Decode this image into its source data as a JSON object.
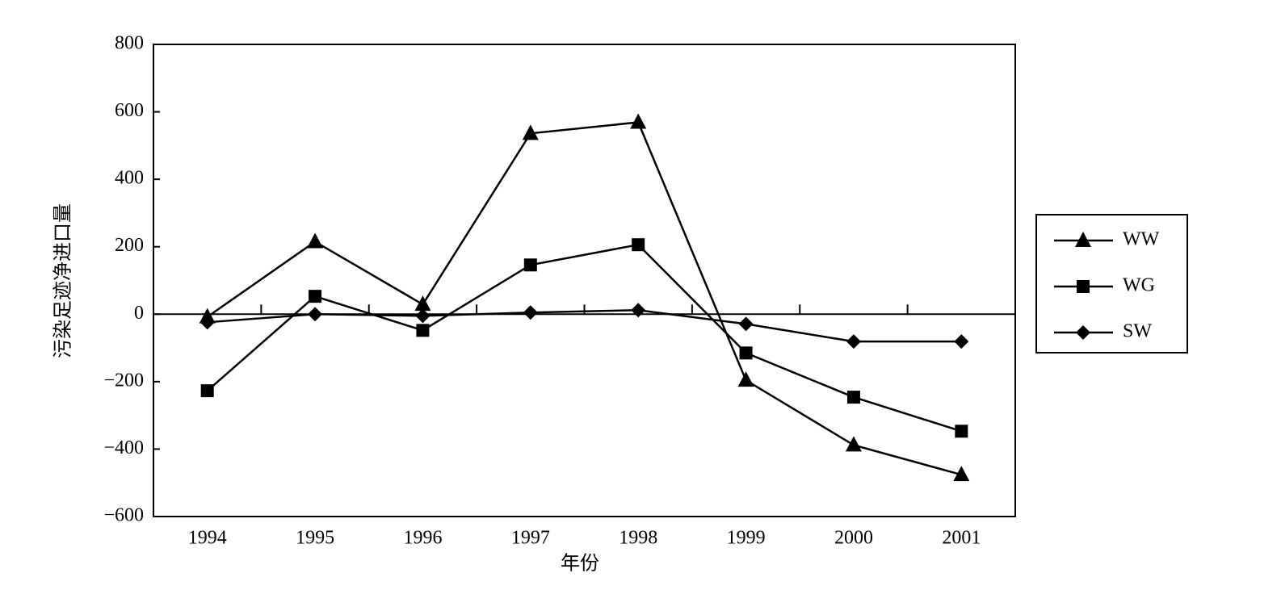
{
  "chart_data": {
    "type": "line",
    "x_label": "年份",
    "y_label": "污染足迹净进口量",
    "categories": [
      "1994",
      "1995",
      "1996",
      "1997",
      "1998",
      "1999",
      "2000",
      "2001"
    ],
    "series": [
      {
        "name": "WW",
        "color": "#000000",
        "marker": "triangle",
        "values": [
          -8,
          215,
          29,
          536,
          569,
          -196,
          -388,
          -476
        ]
      },
      {
        "name": "WG",
        "color": "#000000",
        "marker": "square",
        "values": [
          -227,
          53,
          -48,
          146,
          206,
          -115,
          -246,
          -347
        ]
      },
      {
        "name": "SW",
        "color": "#000000",
        "marker": "diamond",
        "values": [
          -24,
          0,
          -5,
          5,
          12,
          -29,
          -81,
          -81
        ]
      }
    ],
    "ylim": [
      -600,
      800
    ],
    "yticks": [
      {
        "value": -600,
        "label": "−600"
      },
      {
        "value": -400,
        "label": "−400"
      },
      {
        "value": -200,
        "label": "−200"
      },
      0,
      200,
      400,
      600,
      800
    ],
    "grid": false,
    "legend": "right"
  }
}
